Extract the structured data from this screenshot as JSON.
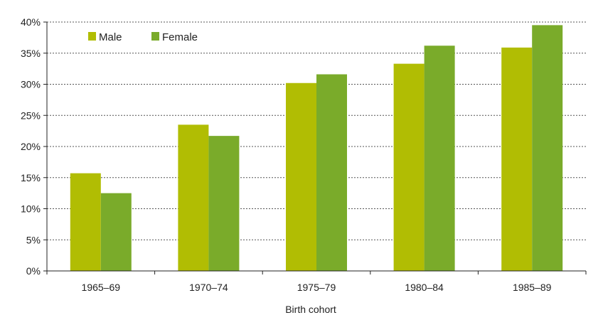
{
  "chart_data": {
    "type": "bar",
    "categories": [
      "1965–69",
      "1970–74",
      "1975–79",
      "1980–84",
      "1985–89"
    ],
    "series": [
      {
        "name": "Male",
        "color": "#b1bd03",
        "values": [
          15.7,
          23.5,
          30.2,
          33.3,
          35.9
        ]
      },
      {
        "name": "Female",
        "color": "#7aab2a",
        "values": [
          12.5,
          21.7,
          31.6,
          36.2,
          39.5
        ]
      }
    ],
    "title": "",
    "xlabel": "Birth cohort",
    "ylabel": "",
    "ylim": [
      0,
      40
    ],
    "yticks": [
      0,
      5,
      10,
      15,
      20,
      25,
      30,
      35,
      40
    ],
    "ytick_labels": [
      "0%",
      "5%",
      "10%",
      "15%",
      "20%",
      "25%",
      "30%",
      "35%",
      "40%"
    ],
    "grid": true,
    "grid_style": "dotted",
    "legend_position": "top-left"
  }
}
